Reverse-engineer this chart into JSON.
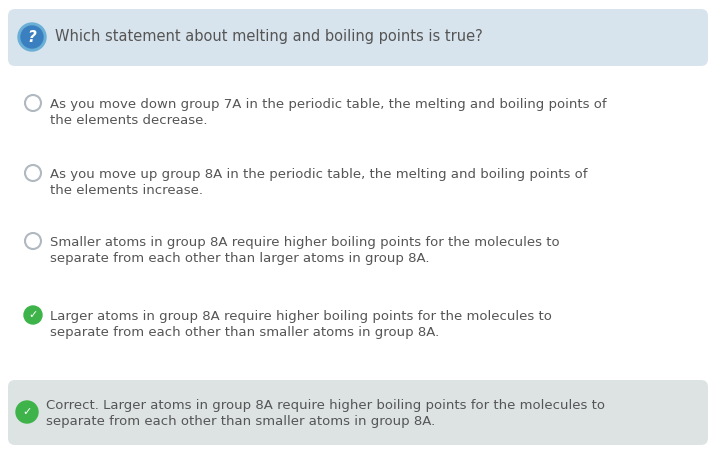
{
  "question": "Which statement about melting and boiling points is true?",
  "question_bg": "#d8e4ed",
  "question_icon_bg_outer": "#6aafd6",
  "question_icon_bg_inner": "#3a7fbf",
  "question_icon_text": "?",
  "options": [
    {
      "text": "As you move down group 7A in the periodic table, the melting and boiling points of\nthe elements decrease.",
      "selected": false,
      "correct": false
    },
    {
      "text": "As you move up group 8A in the periodic table, the melting and boiling points of\nthe elements increase.",
      "selected": false,
      "correct": false
    },
    {
      "text": "Smaller atoms in group 8A require higher boiling points for the molecules to\nseparate from each other than larger atoms in group 8A.",
      "selected": false,
      "correct": false
    },
    {
      "text": "Larger atoms in group 8A require higher boiling points for the molecules to\nseparate from each other than smaller atoms in group 8A.",
      "selected": true,
      "correct": true
    }
  ],
  "feedback_bg": "#dde3e3",
  "feedback_text": "Correct. Larger atoms in group 8A require higher boiling points for the molecules to\nseparate from each other than smaller atoms in group 8A.",
  "feedback_icon_color": "#3db34a",
  "radio_color": "#b0b8c0",
  "check_color": "#3db34a",
  "text_color": "#555555",
  "background_color": "#ffffff",
  "font_size": 9.5,
  "question_font_size": 10.5
}
